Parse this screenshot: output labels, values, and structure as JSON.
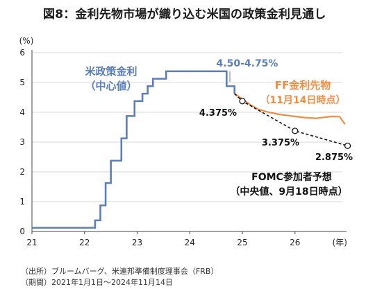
{
  "chart_data": {
    "type": "line",
    "title": "図8：金利先物市場が織り込む米国の政策金利見通し",
    "y_unit": "(%)",
    "x_unit": "(年)",
    "ylim": [
      0,
      6
    ],
    "xlim": [
      21,
      26.9
    ],
    "x_ticks": [
      "21",
      "22",
      "23",
      "24",
      "25",
      "26"
    ],
    "y_ticks": [
      "0",
      "1",
      "2",
      "3",
      "4",
      "5",
      "6"
    ],
    "grid": "horizontal",
    "colors": {
      "fed": "#5a7fb8",
      "futures": "#ee8e45",
      "fomc": "#111111",
      "axis": "#444444",
      "grid": "#d9d9d9"
    },
    "series": [
      {
        "name": "米政策金利",
        "label_lines": [
          "米政策金利",
          "（中心値）"
        ],
        "step": true,
        "points": [
          [
            21.0,
            0.125
          ],
          [
            22.2,
            0.375
          ],
          [
            22.3,
            0.875
          ],
          [
            22.4,
            1.625
          ],
          [
            22.5,
            2.375
          ],
          [
            22.7,
            3.125
          ],
          [
            22.8,
            3.875
          ],
          [
            22.95,
            4.375
          ],
          [
            23.1,
            4.625
          ],
          [
            23.2,
            4.875
          ],
          [
            23.3,
            5.125
          ],
          [
            23.55,
            5.375
          ],
          [
            24.7,
            4.875
          ],
          [
            24.85,
            4.625
          ]
        ]
      },
      {
        "name": "FF金利先物",
        "label_lines": [
          "FF金利先物",
          "（11月14日時点）"
        ],
        "step": false,
        "points": [
          [
            24.85,
            4.62
          ],
          [
            25.0,
            4.45
          ],
          [
            25.15,
            4.25
          ],
          [
            25.3,
            4.1
          ],
          [
            25.5,
            4.0
          ],
          [
            25.7,
            3.93
          ],
          [
            26.0,
            3.86
          ],
          [
            26.2,
            3.82
          ],
          [
            26.4,
            3.8
          ],
          [
            26.55,
            3.83
          ],
          [
            26.7,
            3.86
          ],
          [
            26.85,
            3.85
          ],
          [
            26.95,
            3.6
          ]
        ]
      },
      {
        "name": "FOMC参加者予想",
        "label_lines": [
          "FOMC参加者予想",
          "（中央値、9月18日時点）"
        ],
        "dashed": true,
        "points": [
          [
            24.85,
            4.625
          ],
          [
            25.0,
            4.375
          ],
          [
            26.0,
            3.375
          ],
          [
            27.0,
            2.875
          ]
        ]
      }
    ],
    "annotations": [
      "4.50-4.75%",
      "4.375%",
      "3.375%",
      "2.875%"
    ]
  },
  "notes": {
    "source": "（出所）ブルームバーグ、米連邦準備制度理事会（FRB）",
    "period": "（期間）2021年1月1日～2024年11月14日"
  }
}
